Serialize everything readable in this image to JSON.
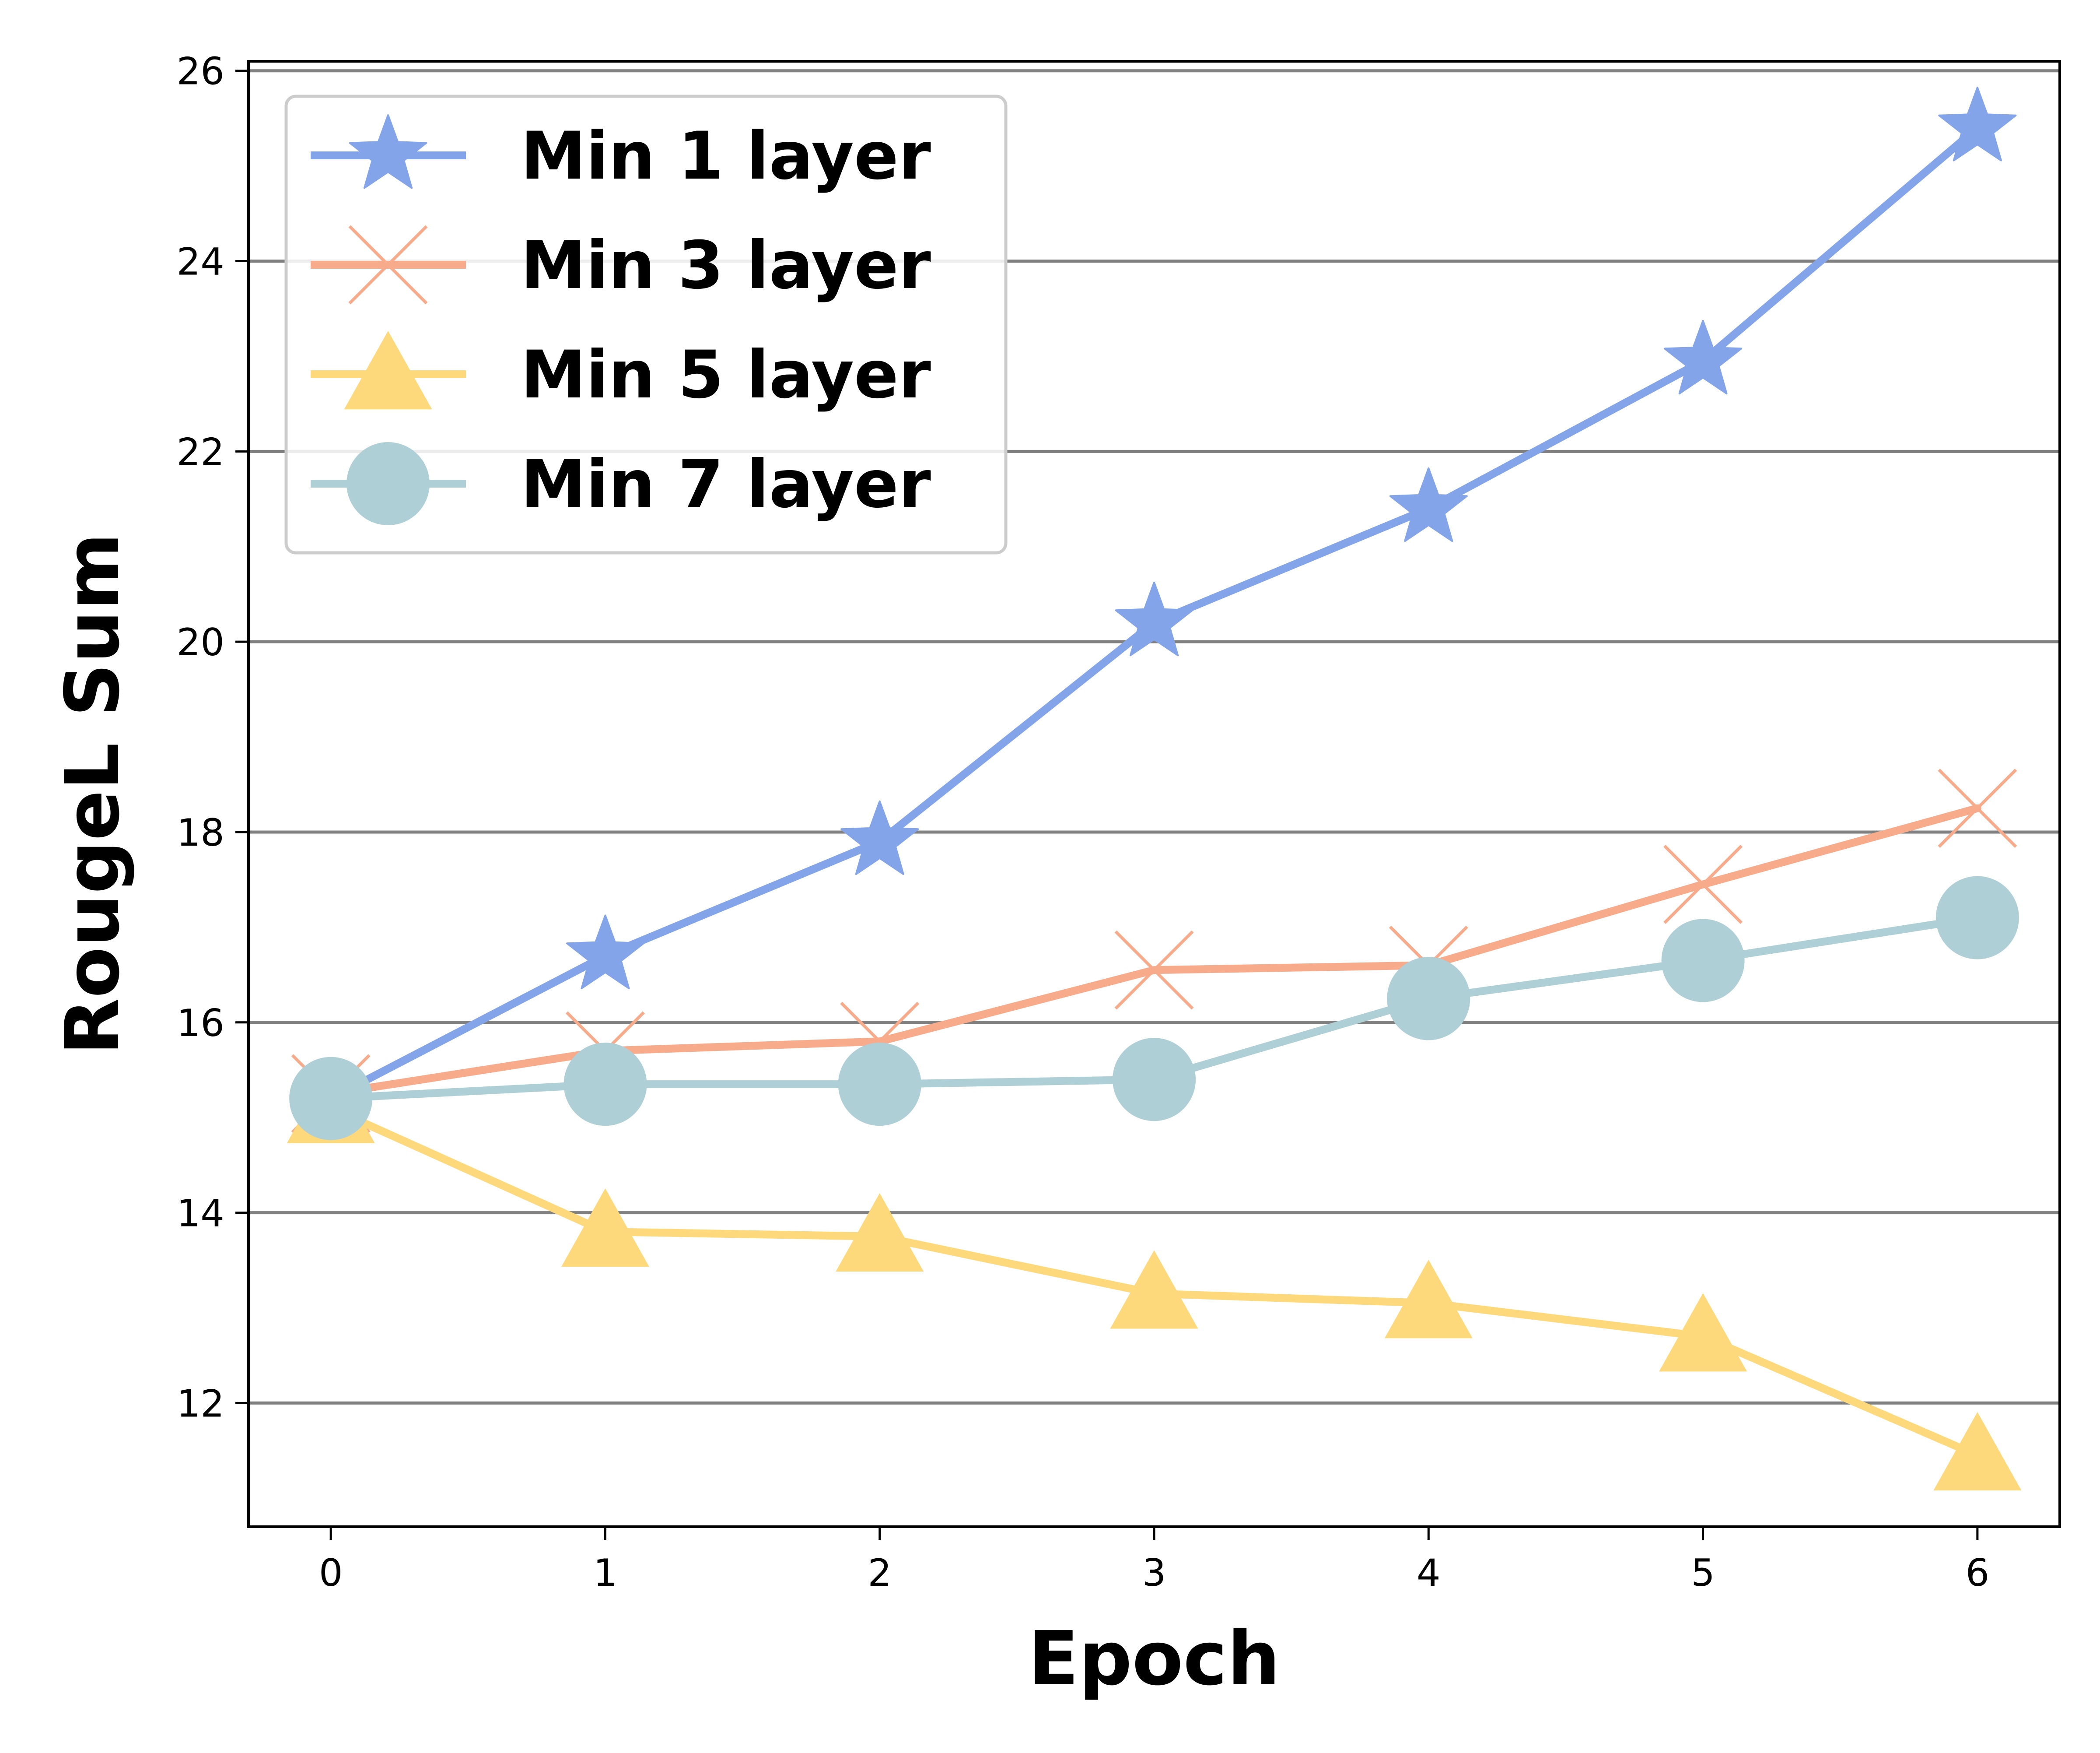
{
  "chart_data": {
    "type": "line",
    "title": "",
    "xlabel": "Epoch",
    "ylabel": "RougeL Sum",
    "x": [
      0,
      1,
      2,
      3,
      4,
      5,
      6
    ],
    "xlim": [
      -0.3,
      6.3
    ],
    "ylim": [
      10.7,
      26.1
    ],
    "xticks": [
      "0",
      "1",
      "2",
      "3",
      "4",
      "5",
      "6"
    ],
    "yticks": [
      "12",
      "14",
      "16",
      "18",
      "20",
      "22",
      "24",
      "26"
    ],
    "grid": "horizontal",
    "legend_position": "top-left",
    "series": [
      {
        "name": "Min 1 layer",
        "marker": "star",
        "color": "#84a4ea",
        "values": [
          15.2,
          16.7,
          17.9,
          20.2,
          21.4,
          22.95,
          25.4
        ]
      },
      {
        "name": "Min 3 layer",
        "marker": "x",
        "color": "#f8ab8b",
        "values": [
          15.25,
          15.7,
          15.8,
          16.55,
          16.6,
          17.45,
          18.25
        ]
      },
      {
        "name": "Min 5 layer",
        "marker": "triangle",
        "color": "#fdd97b",
        "values": [
          15.1,
          13.8,
          13.75,
          13.15,
          13.05,
          12.7,
          11.45
        ]
      },
      {
        "name": "Min 7 layer",
        "marker": "circle",
        "color": "#afcfd6",
        "values": [
          15.2,
          15.35,
          15.35,
          15.4,
          16.25,
          16.65,
          17.1
        ]
      }
    ]
  }
}
